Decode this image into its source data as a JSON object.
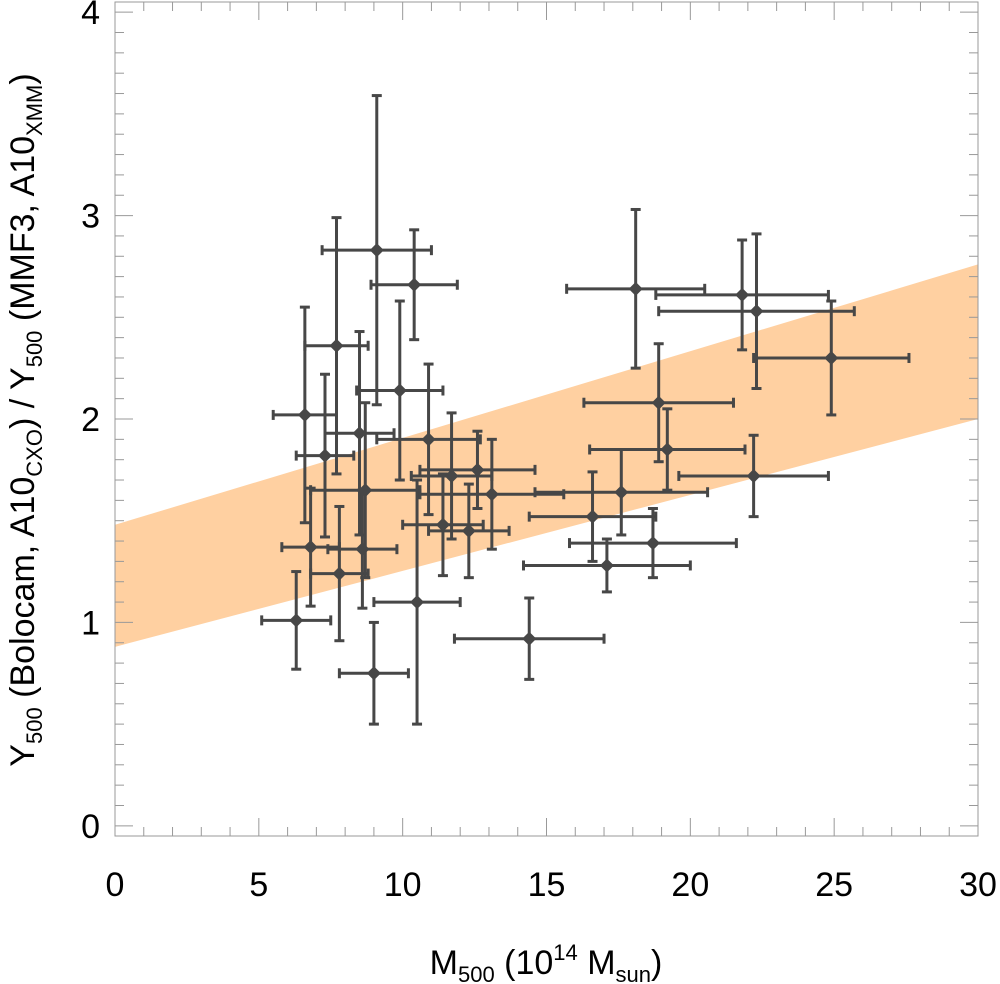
{
  "chart_data": {
    "type": "scatter",
    "xlabel": {
      "base": "M",
      "sub": "500",
      "mid": " (10",
      "sup": "14",
      "mid2": " M",
      "sub2": "sun",
      "end": ")"
    },
    "ylabel": {
      "p1": "Y",
      "s1": "500",
      "p2": " (Bolocam, A10",
      "s2": "CXO",
      "p3": ") / Y",
      "s3": "500",
      "p4": " (MMF3, A10",
      "s4": "XMM",
      "p5": ")"
    },
    "xlim": [
      0,
      30
    ],
    "ylim": [
      -0.05,
      4.05
    ],
    "x_ticks": [
      0,
      5,
      10,
      15,
      20,
      25,
      30
    ],
    "x_tick_labels": [
      "0",
      "5",
      "10",
      "15",
      "20",
      "25",
      "30"
    ],
    "y_ticks": [
      0,
      1,
      2,
      3,
      4
    ],
    "y_tick_labels": [
      "0",
      "1",
      "2",
      "3",
      "4"
    ],
    "band": {
      "x": [
        0,
        30
      ],
      "lower": [
        0.88,
        2.0
      ],
      "upper": [
        1.48,
        2.76
      ],
      "color": "#ffd0a1"
    },
    "marker_color": "#474747",
    "points": [
      {
        "x": 6.3,
        "xerr": 1.2,
        "y": 1.01,
        "yerr": 0.24
      },
      {
        "x": 6.6,
        "xerr": 1.1,
        "y": 2.02,
        "yerr": 0.53
      },
      {
        "x": 6.8,
        "xerr": 1.0,
        "y": 1.37,
        "yerr": 0.29
      },
      {
        "x": 7.3,
        "xerr": 1.0,
        "y": 1.82,
        "yerr": 0.4
      },
      {
        "x": 7.7,
        "xerr": 1.1,
        "y": 2.36,
        "yerr": 0.63
      },
      {
        "x": 7.8,
        "xerr": 1.0,
        "y": 1.24,
        "yerr": 0.33
      },
      {
        "x": 8.5,
        "xerr": 1.2,
        "y": 1.93,
        "yerr": 0.5
      },
      {
        "x": 8.6,
        "xerr": 1.2,
        "y": 1.36,
        "yerr": 0.29
      },
      {
        "x": 8.7,
        "xerr": 1.9,
        "y": 1.65,
        "yerr": 0.43
      },
      {
        "x": 9.0,
        "xerr": 1.2,
        "y": 0.75,
        "yerr": 0.25
      },
      {
        "x": 9.1,
        "xerr": 1.9,
        "y": 2.83,
        "yerr": 0.76
      },
      {
        "x": 9.9,
        "xerr": 1.5,
        "y": 2.14,
        "yerr": 0.44
      },
      {
        "x": 10.4,
        "xerr": 1.5,
        "y": 2.66,
        "yerr": 0.27
      },
      {
        "x": 10.5,
        "xerr": 1.5,
        "y": 1.1,
        "yerr": 0.6
      },
      {
        "x": 10.9,
        "xerr": 1.8,
        "y": 1.9,
        "yerr": 0.37
      },
      {
        "x": 11.4,
        "xerr": 1.4,
        "y": 1.48,
        "yerr": 0.25
      },
      {
        "x": 11.7,
        "xerr": 1.4,
        "y": 1.72,
        "yerr": 0.31
      },
      {
        "x": 12.3,
        "xerr": 1.4,
        "y": 1.45,
        "yerr": 0.23
      },
      {
        "x": 12.6,
        "xerr": 2.0,
        "y": 1.75,
        "yerr": 0.19
      },
      {
        "x": 13.1,
        "xerr": 2.5,
        "y": 1.63,
        "yerr": 0.27
      },
      {
        "x": 14.4,
        "xerr": 2.6,
        "y": 0.92,
        "yerr": 0.2
      },
      {
        "x": 16.6,
        "xerr": 2.2,
        "y": 1.52,
        "yerr": 0.22
      },
      {
        "x": 17.1,
        "xerr": 2.9,
        "y": 1.28,
        "yerr": 0.13
      },
      {
        "x": 17.6,
        "xerr": 3.0,
        "y": 1.64,
        "yerr": 0.21
      },
      {
        "x": 18.1,
        "xerr": 2.4,
        "y": 2.64,
        "yerr": 0.39
      },
      {
        "x": 18.7,
        "xerr": 2.9,
        "y": 1.39,
        "yerr": 0.17
      },
      {
        "x": 18.9,
        "xerr": 2.6,
        "y": 2.08,
        "yerr": 0.29
      },
      {
        "x": 19.2,
        "xerr": 2.7,
        "y": 1.85,
        "yerr": 0.2
      },
      {
        "x": 21.8,
        "xerr": 3.0,
        "y": 2.61,
        "yerr": 0.27
      },
      {
        "x": 22.2,
        "xerr": 2.6,
        "y": 1.72,
        "yerr": 0.2
      },
      {
        "x": 22.3,
        "xerr": 3.4,
        "y": 2.53,
        "yerr": 0.38
      },
      {
        "x": 24.9,
        "xerr": 2.7,
        "y": 2.3,
        "yerr": 0.28
      }
    ]
  }
}
